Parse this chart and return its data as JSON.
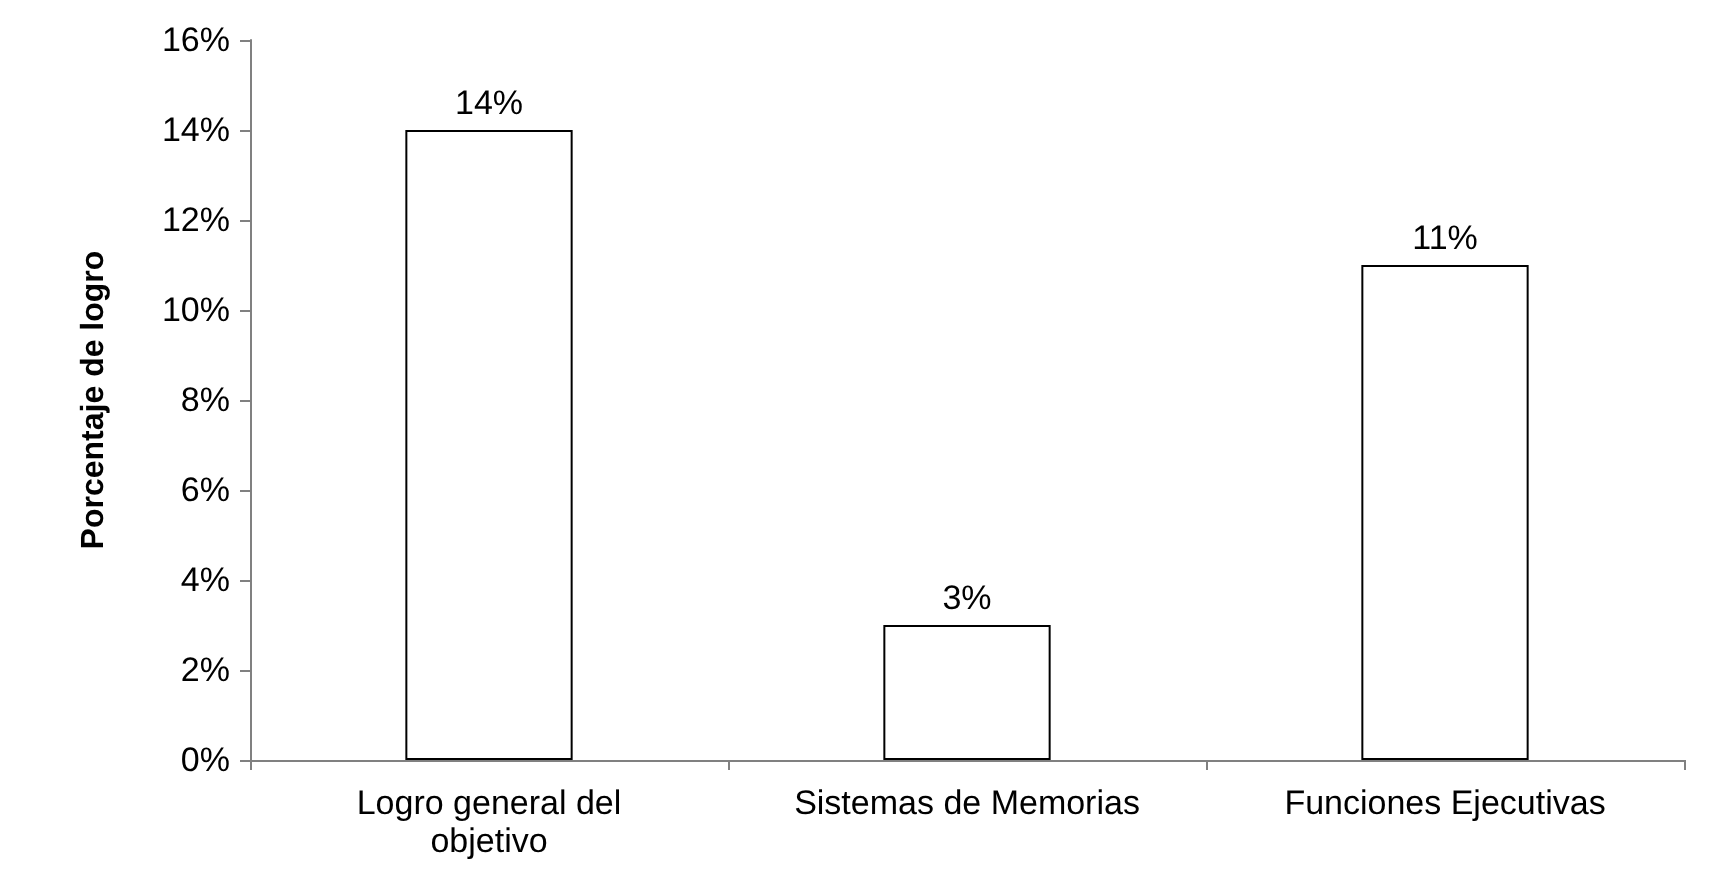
{
  "chart_data": {
    "type": "bar",
    "ylabel": "Porcentaje de logro",
    "categories": [
      "Logro general del\nobjetivo",
      "Sistemas de Memorias",
      "Funciones Ejecutivas"
    ],
    "values": [
      14,
      3,
      11
    ],
    "color": "#ffffff",
    "value_labels": [
      "14%",
      "3%",
      "11%"
    ],
    "ylim": [
      0,
      16
    ],
    "yticks": [
      {
        "value": 0,
        "label": "0%"
      },
      {
        "value": 2,
        "label": "2%"
      },
      {
        "value": 4,
        "label": "4%"
      },
      {
        "value": 6,
        "label": "6%"
      },
      {
        "value": 8,
        "label": "8%"
      },
      {
        "value": 10,
        "label": "10%"
      },
      {
        "value": 12,
        "label": "12%"
      },
      {
        "value": 14,
        "label": "14%"
      },
      {
        "value": 16,
        "label": "16%"
      }
    ],
    "grid": false
  }
}
